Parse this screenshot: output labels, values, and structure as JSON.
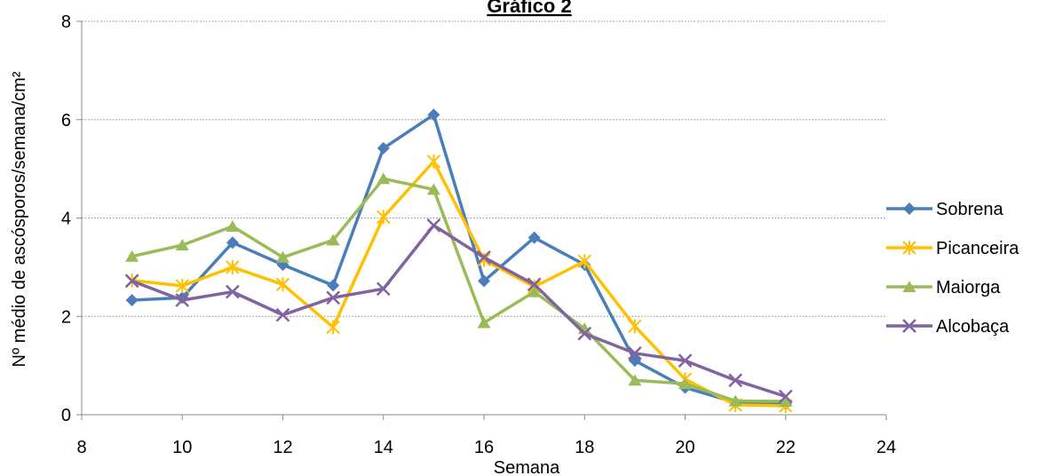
{
  "chart_data": {
    "type": "line",
    "title": "Gráfico 2",
    "xlabel": "Semana",
    "ylabel": "Nº médio de ascósporos/semana/cm²",
    "xlim": [
      8,
      24
    ],
    "ylim": [
      0,
      8
    ],
    "xticks": [
      8,
      10,
      12,
      14,
      16,
      18,
      20,
      22,
      24
    ],
    "yticks": [
      0,
      2,
      4,
      6,
      8
    ],
    "grid": "horizontal dotted",
    "legend_position": "right",
    "x": [
      9,
      10,
      11,
      12,
      13,
      14,
      15,
      16,
      17,
      18,
      19,
      20,
      21,
      22
    ],
    "series": [
      {
        "name": "Sobrena",
        "color": "#4a7ebb",
        "marker": "diamond",
        "values": [
          2.33,
          2.38,
          3.5,
          3.05,
          2.63,
          5.42,
          6.1,
          2.72,
          3.6,
          3.05,
          1.1,
          0.55,
          0.25,
          0.22
        ]
      },
      {
        "name": "Picanceira",
        "color": "#ffc000",
        "marker": "asterisk",
        "values": [
          2.73,
          2.62,
          3.0,
          2.65,
          1.78,
          4.02,
          5.15,
          3.15,
          2.6,
          3.12,
          1.8,
          0.72,
          0.2,
          0.18
        ]
      },
      {
        "name": "Maiorga",
        "color": "#9bbb59",
        "marker": "triangle",
        "values": [
          3.22,
          3.45,
          3.83,
          3.2,
          3.55,
          4.8,
          4.58,
          1.87,
          2.5,
          1.75,
          0.7,
          0.63,
          0.28,
          0.27
        ]
      },
      {
        "name": "Alcobaça",
        "color": "#8064a2",
        "marker": "x",
        "values": [
          2.72,
          2.33,
          2.5,
          2.03,
          2.38,
          2.56,
          3.85,
          3.2,
          2.65,
          1.65,
          1.25,
          1.1,
          0.7,
          0.37
        ]
      }
    ]
  }
}
